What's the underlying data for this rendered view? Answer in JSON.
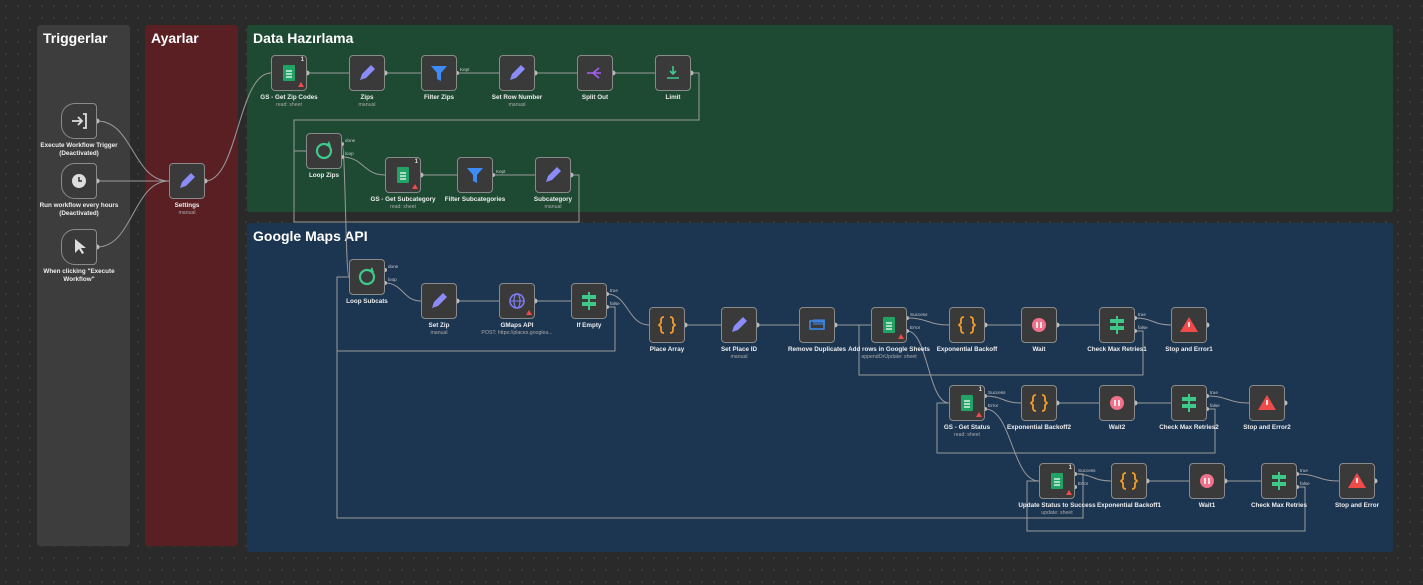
{
  "groups": [
    {
      "title": "Triggerlar"
    },
    {
      "title": "Ayarlar"
    },
    {
      "title": "Data Hazırlama"
    },
    {
      "title": "Google Maps API"
    }
  ],
  "nodes": [
    {
      "label": "Execute Workflow Trigger (Deactivated)"
    },
    {
      "label": "Run workflow every hours (Deactivated)"
    },
    {
      "label": "When clicking \"Execute Workflow\""
    },
    {
      "label": "Settings",
      "subtitle": "manual"
    },
    {
      "label": "GS - Get Zip Codes",
      "subtitle": "read: sheet",
      "badge": "1"
    },
    {
      "label": "Zips",
      "subtitle": "manual"
    },
    {
      "label": "Filter Zips",
      "outputs": [
        "Kept"
      ]
    },
    {
      "label": "Set Row Number",
      "subtitle": "manual"
    },
    {
      "label": "Split Out"
    },
    {
      "label": "Limit"
    },
    {
      "label": "Loop Zips",
      "outputs": [
        "done",
        "loop"
      ]
    },
    {
      "label": "GS - Get Subcategory",
      "subtitle": "read: sheet",
      "badge": "1"
    },
    {
      "label": "Filter Subcategories",
      "outputs": [
        "Kept"
      ]
    },
    {
      "label": "Subcategory",
      "subtitle": "manual"
    },
    {
      "label": "Loop Subcats",
      "outputs": [
        "done",
        "loop"
      ]
    },
    {
      "label": "Set Zip",
      "subtitle": "manual"
    },
    {
      "label": "GMaps API",
      "subtitle": "POST: https://places.googlea..."
    },
    {
      "label": "If Empty",
      "outputs": [
        "true",
        "false"
      ]
    },
    {
      "label": "Place Array"
    },
    {
      "label": "Set Place ID",
      "subtitle": "manual"
    },
    {
      "label": "Remove Duplicates"
    },
    {
      "label": "Add rows in Google Sheets",
      "subtitle": "appendOrUpdate: sheet",
      "outputs": [
        "Success",
        "Error"
      ]
    },
    {
      "label": "Exponential Backoff"
    },
    {
      "label": "Wait"
    },
    {
      "label": "Check Max Retries1",
      "outputs": [
        "true",
        "false"
      ]
    },
    {
      "label": "Stop and Error1"
    },
    {
      "label": "GS - Get Status",
      "subtitle": "read: sheet",
      "outputs": [
        "Success",
        "Error"
      ],
      "badge": "1"
    },
    {
      "label": "Exponential Backoff2"
    },
    {
      "label": "Wait2"
    },
    {
      "label": "Check Max Retries2",
      "outputs": [
        "true",
        "false"
      ]
    },
    {
      "label": "Stop and Error2"
    },
    {
      "label": "Update Status to Success",
      "subtitle": "update: sheet",
      "outputs": [
        "Success",
        "Error"
      ],
      "badge": "1"
    },
    {
      "label": "Exponential Backoff1"
    },
    {
      "label": "Wait1"
    },
    {
      "label": "Check Max Retries",
      "outputs": [
        "true",
        "false"
      ]
    },
    {
      "label": "Stop and Error"
    }
  ]
}
